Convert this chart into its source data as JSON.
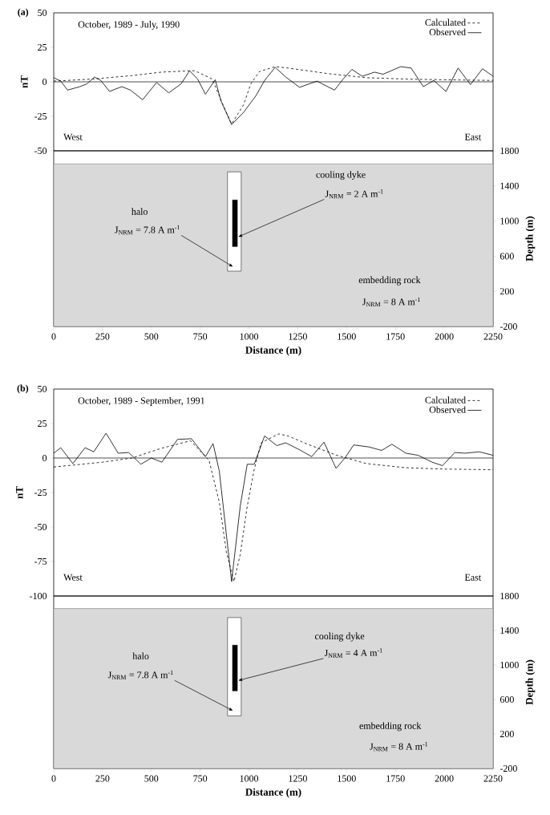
{
  "chart_data": [
    {
      "type": "line",
      "annotations": [
        "(a)",
        "October, 1989 - July, 1990",
        "West",
        "East"
      ],
      "ylabel": "nT",
      "xlim": [
        0,
        2250
      ],
      "ylim": [
        -50,
        50
      ],
      "yticks": [
        -50,
        -25,
        0,
        25,
        50
      ],
      "tick_labels": "y",
      "legend": "top right",
      "ref_lines": [
        {
          "axis": "y",
          "value": 0
        }
      ],
      "series": [
        {
          "name": "Calculated",
          "color": "#000000",
          "line_style": "dashed",
          "x": [
            0,
            200,
            400,
            550,
            700,
            723,
            812,
            866,
            911,
            973,
            1009,
            1054,
            1134,
            1200,
            1400,
            1600,
            1800,
            2000,
            2250
          ],
          "values": [
            0.5,
            2,
            4.5,
            7,
            8,
            8,
            2,
            -16.5,
            -30.5,
            -16.5,
            -1.5,
            7.5,
            11,
            10,
            6,
            3,
            2,
            1.5,
            1
          ]
        },
        {
          "name": "Observed",
          "color": "#000000",
          "line_style": "solid",
          "x": [
            0,
            36,
            71,
            134,
            170,
            209,
            241,
            286,
            348,
            393,
            455,
            527,
            589,
            652,
            696,
            737,
            777,
            827,
            857,
            911,
            973,
            1036,
            1080,
            1134,
            1188,
            1259,
            1348,
            1438,
            1482,
            1527,
            1580,
            1643,
            1687,
            1777,
            1830,
            1893,
            1946,
            2009,
            2071,
            2134,
            2196,
            2250
          ],
          "values": [
            3,
            0.5,
            -6,
            -3.5,
            -1.5,
            3.5,
            1,
            -7,
            -3.5,
            -6,
            -13,
            -0.5,
            -8,
            -1.5,
            8,
            2,
            -9,
            1.5,
            -14,
            -31,
            -22,
            -10,
            1,
            10.5,
            3.5,
            -4,
            0.5,
            -6,
            2,
            9,
            4,
            7,
            5.5,
            11,
            10,
            -3.5,
            1,
            -7,
            10,
            -2,
            9.5,
            4
          ]
        }
      ]
    },
    {
      "type": "bar",
      "xlabel": "Distance (m)",
      "ylabel": "Depth (m)",
      "xlim": [
        0,
        2250
      ],
      "xticks": [
        0,
        250,
        500,
        750,
        1000,
        1250,
        1500,
        1750,
        2000,
        2250
      ],
      "ylim": [
        -200,
        1800
      ],
      "yticks": [
        -200,
        200,
        600,
        1000,
        1400,
        1800
      ],
      "annotations": [
        "halo",
        "J$_{NRM}$ = 7.8 A m$^{-1}$",
        "cooling dyke",
        {
          "text": "J$_{NRM}$ = 2 A m$^{-1}$",
          "x": 945,
          "y": 820
        },
        "embedding rock",
        "J$_{NRM}$ = 8 A m$^{-1}$"
      ],
      "bands": [
        {
          "axis": "y",
          "from": -200,
          "to": 1650,
          "color": "#d9d9d9"
        }
      ],
      "series": [
        {
          "type": "bar",
          "color": "#ffffff",
          "x": [
            925
          ],
          "base": [
            430
          ],
          "values": [
            1130
          ]
        },
        {
          "type": "bar",
          "color": "#000000",
          "x": [
            928
          ],
          "base": [
            710
          ],
          "values": [
            530
          ]
        }
      ]
    },
    {
      "type": "line",
      "annotations": [
        "(b)",
        "October, 1989 - September, 1991",
        "West",
        "East"
      ],
      "ylabel": "nT",
      "xlim": [
        0,
        2250
      ],
      "ylim": [
        -100,
        50
      ],
      "yticks": [
        -100,
        -75,
        -50,
        -25,
        0,
        25,
        50
      ],
      "tick_labels": "y",
      "legend": "top right",
      "ref_lines": [
        {
          "axis": "y",
          "value": 0
        }
      ],
      "series": [
        {
          "name": "Calculated",
          "color": "#000000",
          "line_style": "dashed",
          "x": [
            0,
            250,
            400,
            550,
            700,
            795,
            848,
            884,
            923,
            955,
            991,
            1027,
            1062,
            1152,
            1200,
            1300,
            1450,
            1600,
            1800,
            2000,
            2250
          ],
          "values": [
            -6.5,
            -3,
            0,
            7,
            12.5,
            -1.5,
            -32,
            -68,
            -89.5,
            -70,
            -35,
            -8,
            11,
            17.5,
            16,
            10,
            2,
            -4,
            -7,
            -8,
            -8.5
          ]
        },
        {
          "name": "Observed",
          "color": "#000000",
          "line_style": "solid",
          "x": [
            0,
            36,
            98,
            161,
            205,
            268,
            330,
            384,
            446,
            500,
            554,
            634,
            705,
            777,
            816,
            848,
            911,
            955,
            991,
            1027,
            1080,
            1143,
            1188,
            1259,
            1321,
            1384,
            1446,
            1491,
            1536,
            1616,
            1679,
            1732,
            1804,
            1866,
            1938,
            1991,
            2054,
            2107,
            2179,
            2250
          ],
          "values": [
            3.5,
            7.5,
            -4,
            7.5,
            4.5,
            18,
            3.5,
            4,
            -4.5,
            0,
            -3,
            13.5,
            14,
            1,
            10.5,
            -9.5,
            -89.5,
            -35,
            -4.5,
            -4.5,
            16,
            9,
            11,
            6,
            1,
            11.5,
            -7.5,
            0,
            9.5,
            8,
            5.5,
            10,
            3.5,
            2,
            -3,
            -5.5,
            4,
            3.5,
            4.5,
            2
          ]
        }
      ]
    },
    {
      "type": "bar",
      "xlabel": "Distance (m)",
      "ylabel": "Depth (m)",
      "xlim": [
        0,
        2250
      ],
      "xticks": [
        0,
        250,
        500,
        750,
        1000,
        1250,
        1500,
        1750,
        2000,
        2250
      ],
      "ylim": [
        -200,
        1800
      ],
      "yticks": [
        -200,
        200,
        600,
        1000,
        1400,
        1800
      ],
      "annotations": [
        "halo",
        "J$_{NRM}$ = 7.8 A m$^{-1}$",
        "cooling dyke",
        {
          "text": "J$_{NRM}$ = 4 A m$^{-1}$",
          "x": 945,
          "y": 820
        },
        "embedding rock",
        "J$_{NRM}$ = 8 A m$^{-1}$"
      ],
      "bands": [
        {
          "axis": "y",
          "from": -200,
          "to": 1655,
          "color": "#d9d9d9"
        }
      ],
      "series": [
        {
          "type": "bar",
          "color": "#ffffff",
          "x": [
            925
          ],
          "base": [
            410
          ],
          "values": [
            1140
          ]
        },
        {
          "type": "bar",
          "color": "#000000",
          "x": [
            928
          ],
          "base": [
            700
          ],
          "values": [
            530
          ]
        }
      ]
    }
  ]
}
